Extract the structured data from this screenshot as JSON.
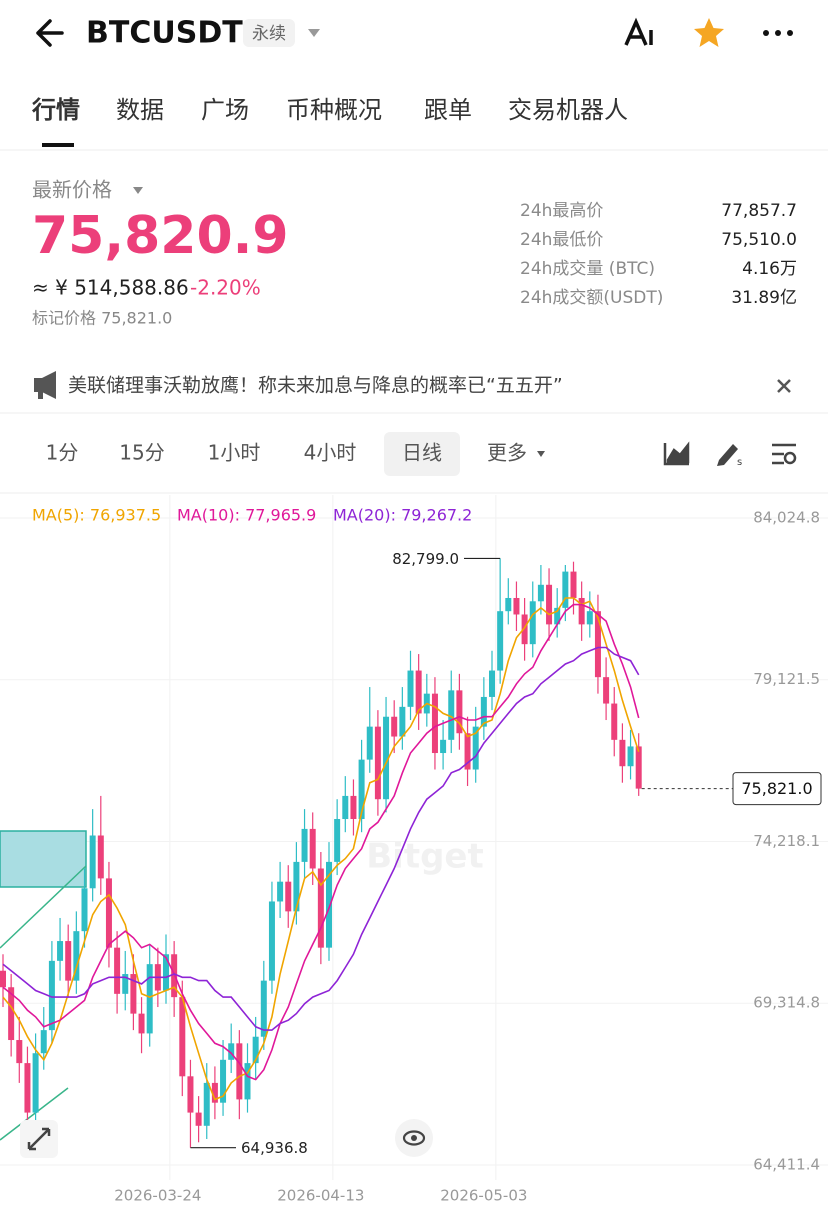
{
  "header": {
    "symbol": "BTCUSDT",
    "badge": "永续"
  },
  "tabs": [
    "行情",
    "数据",
    "广场",
    "币种概况",
    "跟单",
    "交易机器人"
  ],
  "price": {
    "label": "最新价格",
    "last": "75,820.9",
    "cny": "≈ ¥ 514,588.86",
    "change": "-2.20%",
    "mark": "标记价格 75,821.0"
  },
  "stats": [
    {
      "label": "24h最高价",
      "value": "77,857.7"
    },
    {
      "label": "24h最低价",
      "value": "75,510.0"
    },
    {
      "label": "24h成交量 (BTC)",
      "value": "4.16万"
    },
    {
      "label": "24h成交额(USDT)",
      "value": "31.89亿"
    }
  ],
  "news": "美联储理事沃勒放鹰！称未来加息与降息的概率已“五五开”",
  "intervals": [
    "1分",
    "15分",
    "1小时",
    "4小时",
    "日线",
    "更多"
  ],
  "chart_data": {
    "type": "candlestick",
    "watermark": "Bitget",
    "up_color": "#2ebdc6",
    "down_color": "#ec407a",
    "categories": [
      null,
      null,
      null,
      null,
      null,
      null,
      null,
      null,
      null,
      null,
      null,
      null,
      null,
      null,
      null,
      null,
      null,
      null,
      null,
      "2026-03-24",
      null,
      null,
      null,
      null,
      null,
      null,
      null,
      null,
      null,
      null,
      null,
      null,
      null,
      null,
      null,
      null,
      null,
      null,
      null,
      "2026-04-13",
      null,
      null,
      null,
      null,
      null,
      null,
      null,
      null,
      null,
      null,
      null,
      null,
      null,
      null,
      null,
      null,
      null,
      null,
      null,
      "2026-05-03",
      null,
      null,
      null,
      null,
      null,
      null,
      null,
      null,
      null,
      null,
      null,
      null,
      null,
      null,
      null,
      null,
      null,
      null,
      null
    ],
    "candles": [
      [
        70300,
        70800,
        69200,
        69800
      ],
      [
        69800,
        70200,
        67700,
        68200
      ],
      [
        68200,
        68900,
        66900,
        67500
      ],
      [
        67500,
        68000,
        65400,
        66000
      ],
      [
        66000,
        68400,
        65700,
        67800
      ],
      [
        67800,
        69200,
        67300,
        68500
      ],
      [
        68500,
        71200,
        68100,
        70600
      ],
      [
        70600,
        71900,
        70000,
        71200
      ],
      [
        71200,
        71700,
        69500,
        70000
      ],
      [
        70000,
        72100,
        69600,
        71500
      ],
      [
        71500,
        73400,
        71000,
        72800
      ],
      [
        72800,
        75200,
        72400,
        74400
      ],
      [
        74400,
        75600,
        72600,
        73100
      ],
      [
        73100,
        73600,
        70400,
        71000
      ],
      [
        71000,
        71500,
        69000,
        69600
      ],
      [
        69600,
        70900,
        69100,
        70200
      ],
      [
        70200,
        70800,
        68500,
        69000
      ],
      [
        69000,
        69500,
        67800,
        68400
      ],
      [
        68400,
        71100,
        68000,
        70500
      ],
      [
        70500,
        71000,
        69200,
        69700
      ],
      [
        69700,
        71400,
        69300,
        70800
      ],
      [
        70800,
        71200,
        68900,
        69500
      ],
      [
        69500,
        70000,
        66500,
        67100
      ],
      [
        67100,
        67600,
        64936.8,
        66000
      ],
      [
        66000,
        66500,
        65100,
        65600
      ],
      [
        65600,
        67500,
        65200,
        66900
      ],
      [
        66900,
        67400,
        65800,
        66300
      ],
      [
        66300,
        68200,
        65900,
        67600
      ],
      [
        67600,
        68700,
        67200,
        68100
      ],
      [
        68100,
        68500,
        65800,
        66400
      ],
      [
        66400,
        68100,
        66000,
        67500
      ],
      [
        67500,
        68900,
        67000,
        68300
      ],
      [
        68300,
        70600,
        67900,
        70000
      ],
      [
        70000,
        73000,
        69600,
        72400
      ],
      [
        72400,
        73600,
        71900,
        73000
      ],
      [
        73000,
        73500,
        71600,
        72100
      ],
      [
        72100,
        74200,
        71700,
        73600
      ],
      [
        73600,
        75200,
        73100,
        74600
      ],
      [
        74600,
        75100,
        72900,
        73400
      ],
      [
        73400,
        73900,
        70500,
        71000
      ],
      [
        71000,
        74200,
        70600,
        73600
      ],
      [
        73600,
        75500,
        73200,
        74900
      ],
      [
        74900,
        76200,
        74500,
        75600
      ],
      [
        75600,
        76100,
        74400,
        74900
      ],
      [
        74900,
        77300,
        74500,
        76700
      ],
      [
        76700,
        78900,
        76300,
        77700
      ],
      [
        77700,
        78200,
        75000,
        75500
      ],
      [
        75500,
        78600,
        75100,
        78000
      ],
      [
        78000,
        78500,
        76900,
        77400
      ],
      [
        77400,
        78900,
        77000,
        78300
      ],
      [
        78300,
        80000,
        77900,
        79400
      ],
      [
        79400,
        79900,
        77600,
        78100
      ],
      [
        78100,
        79300,
        77700,
        78700
      ],
      [
        78700,
        79200,
        76400,
        76900
      ],
      [
        76900,
        77900,
        76400,
        77300
      ],
      [
        77300,
        79400,
        76900,
        78800
      ],
      [
        78800,
        79300,
        77000,
        77500
      ],
      [
        77500,
        78000,
        75900,
        76400
      ],
      [
        76400,
        78300,
        76000,
        77700
      ],
      [
        77700,
        79200,
        77300,
        78600
      ],
      [
        78600,
        80000,
        78200,
        79400
      ],
      [
        79400,
        82799,
        79000,
        81200
      ],
      [
        81200,
        82200,
        80800,
        81600
      ],
      [
        81600,
        82100,
        80600,
        81100
      ],
      [
        81100,
        81600,
        79700,
        80200
      ],
      [
        80200,
        82100,
        79800,
        81500
      ],
      [
        81500,
        82600,
        81100,
        82000
      ],
      [
        82000,
        82500,
        80300,
        80800
      ],
      [
        80800,
        81900,
        80400,
        81300
      ],
      [
        81300,
        82600,
        80900,
        82400
      ],
      [
        82400,
        82700,
        81100,
        81600
      ],
      [
        81600,
        82100,
        80300,
        80800
      ],
      [
        80800,
        81800,
        80400,
        81200
      ],
      [
        81200,
        81700,
        78700,
        79200
      ],
      [
        79200,
        79800,
        77900,
        78400
      ],
      [
        78400,
        78900,
        76800,
        77300
      ],
      [
        77300,
        77800,
        76000,
        76500
      ],
      [
        76500,
        77600,
        76100,
        77100
      ],
      [
        77100,
        77500,
        75600,
        75821
      ]
    ],
    "series": [
      {
        "name": "MA(5): 76,937.5",
        "color": "#f0a500",
        "values": [
          69500,
          69200,
          68800,
          68300,
          67900,
          67600,
          68100,
          68800,
          69600,
          70400,
          71200,
          72000,
          72400,
          72600,
          72200,
          71700,
          70600,
          69600,
          69500,
          69600,
          69700,
          69800,
          69500,
          68600,
          67800,
          67000,
          66400,
          66500,
          66900,
          67100,
          67200,
          67600,
          68100,
          68900,
          70200,
          71200,
          72200,
          73100,
          73300,
          72900,
          73200,
          73500,
          73700,
          74000,
          75100,
          76000,
          76100,
          76600,
          77100,
          77400,
          77700,
          78200,
          78400,
          78300,
          78100,
          78000,
          77800,
          77400,
          77500,
          77800,
          77900,
          78700,
          79700,
          80400,
          80700,
          81100,
          81300,
          81100,
          81200,
          81600,
          81600,
          81400,
          81500,
          81000,
          80200,
          79400,
          78500,
          77700,
          76937.5
        ]
      },
      {
        "name": "MA(10): 77,965.9",
        "color": "#e0189a",
        "values": [
          69800,
          69600,
          69400,
          69100,
          68900,
          68600,
          68700,
          68800,
          69000,
          69200,
          69400,
          70100,
          70600,
          71100,
          71300,
          71500,
          71300,
          71000,
          71100,
          70900,
          70700,
          70200,
          69600,
          69100,
          68700,
          68400,
          68100,
          68000,
          67800,
          67500,
          67100,
          67000,
          67300,
          67900,
          68700,
          69200,
          69900,
          70600,
          71100,
          71600,
          72200,
          72900,
          73400,
          73700,
          74000,
          74600,
          74800,
          75200,
          75600,
          76300,
          76900,
          77200,
          77500,
          77700,
          77800,
          77900,
          78000,
          77900,
          77900,
          78000,
          78000,
          78300,
          78600,
          79000,
          79300,
          79500,
          80000,
          80400,
          80800,
          81200,
          81400,
          81400,
          81300,
          81100,
          80900,
          80200,
          79600,
          78900,
          77965.9
        ]
      },
      {
        "name": "MA(20): 79,267.2",
        "color": "#8e24d6",
        "values": [
          70500,
          70300,
          70100,
          69900,
          69700,
          69600,
          69500,
          69500,
          69500,
          69500,
          69600,
          69900,
          70000,
          70100,
          70100,
          70100,
          70000,
          69900,
          70100,
          70100,
          70100,
          70200,
          70100,
          70100,
          70000,
          70000,
          69700,
          69500,
          69500,
          69200,
          68900,
          68600,
          68500,
          68500,
          68700,
          68800,
          69000,
          69300,
          69500,
          69600,
          69700,
          70000,
          70400,
          70800,
          71400,
          71900,
          72400,
          72900,
          73400,
          74000,
          74600,
          75100,
          75500,
          75700,
          75900,
          76300,
          76400,
          76600,
          76800,
          77200,
          77500,
          77800,
          78100,
          78400,
          78600,
          78700,
          79000,
          79200,
          79400,
          79600,
          79700,
          79900,
          80000,
          80100,
          80100,
          79900,
          79800,
          79700,
          79267.2
        ]
      }
    ],
    "ylim": [
      64411.4,
      84024.8
    ],
    "yticks": [
      {
        "value": 84024.8,
        "label": "84,024.8"
      },
      {
        "value": 79121.5,
        "label": "79,121.5"
      },
      {
        "value": 74218.1,
        "label": "74,218.1"
      },
      {
        "value": 69314.8,
        "label": "69,314.8"
      },
      {
        "value": 64411.4,
        "label": "64,411.4"
      }
    ],
    "high_marker": {
      "value": 82799.0,
      "label": "82,799.0"
    },
    "low_marker": {
      "value": 64936.8,
      "label": "64,936.8"
    },
    "last_price": {
      "value": 75821.0,
      "label": "75,821.0"
    },
    "grid": true
  }
}
